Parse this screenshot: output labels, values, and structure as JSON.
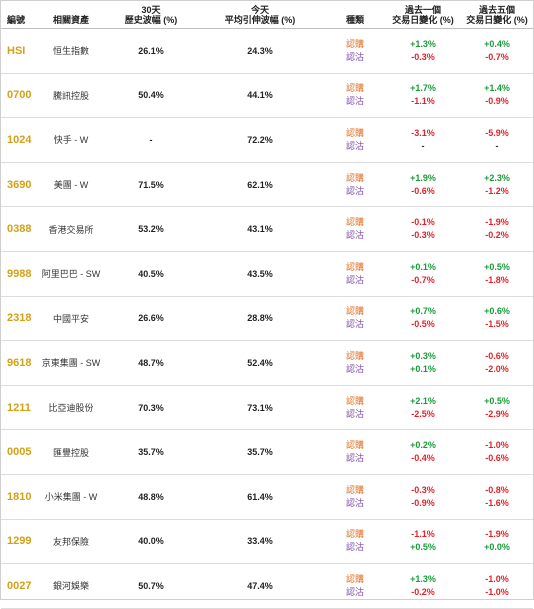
{
  "headers": {
    "code": "編號",
    "asset": "相關資產",
    "vol30_line1": "30天",
    "vol30_line2": "歷史波幅 (%)",
    "volimp_line1": "今天",
    "volimp_line2": "平均引伸波幅 (%)",
    "type": "種類",
    "d1_line1": "過去一個",
    "d1_line2": "交易日變化 (%)",
    "d5_line1": "過去五個",
    "d5_line2": "交易日變化 (%)"
  },
  "type_labels": {
    "bull": "認購",
    "bear": "認沽"
  },
  "colors": {
    "code": "#d4a017",
    "bull": "#e06b1f",
    "bear": "#7b4aa6",
    "positive": "#1a9b3a",
    "negative": "#e0232b"
  },
  "rows": [
    {
      "code": "HSI",
      "asset": "恒生指數",
      "vol30": "26.1%",
      "volimp": "24.3%",
      "d1": [
        "+1.3%",
        "-0.3%"
      ],
      "d5": [
        "+0.4%",
        "-0.7%"
      ]
    },
    {
      "code": "0700",
      "asset": "騰訊控股",
      "vol30": "50.4%",
      "volimp": "44.1%",
      "d1": [
        "+1.7%",
        "-1.1%"
      ],
      "d5": [
        "+1.4%",
        "-0.9%"
      ]
    },
    {
      "code": "1024",
      "asset": "快手 - W",
      "vol30": "-",
      "volimp": "72.2%",
      "d1": [
        "-3.1%",
        "-"
      ],
      "d5": [
        "-5.9%",
        "-"
      ]
    },
    {
      "code": "3690",
      "asset": "美團 - W",
      "vol30": "71.5%",
      "volimp": "62.1%",
      "d1": [
        "+1.9%",
        "-0.6%"
      ],
      "d5": [
        "+2.3%",
        "-1.2%"
      ]
    },
    {
      "code": "0388",
      "asset": "香港交易所",
      "vol30": "53.2%",
      "volimp": "43.1%",
      "d1": [
        "-0.1%",
        "-0.3%"
      ],
      "d5": [
        "-1.9%",
        "-0.2%"
      ]
    },
    {
      "code": "9988",
      "asset": "阿里巴巴 - SW",
      "vol30": "40.5%",
      "volimp": "43.5%",
      "d1": [
        "+0.1%",
        "-0.7%"
      ],
      "d5": [
        "+0.5%",
        "-1.8%"
      ]
    },
    {
      "code": "2318",
      "asset": "中國平安",
      "vol30": "26.6%",
      "volimp": "28.8%",
      "d1": [
        "+0.7%",
        "-0.5%"
      ],
      "d5": [
        "+0.6%",
        "-1.5%"
      ]
    },
    {
      "code": "9618",
      "asset": "京東集團 - SW",
      "vol30": "48.7%",
      "volimp": "52.4%",
      "d1": [
        "+0.3%",
        "+0.1%"
      ],
      "d5": [
        "-0.6%",
        "-2.0%"
      ]
    },
    {
      "code": "1211",
      "asset": "比亞迪股份",
      "vol30": "70.3%",
      "volimp": "73.1%",
      "d1": [
        "+2.1%",
        "-2.5%"
      ],
      "d5": [
        "+0.5%",
        "-2.9%"
      ]
    },
    {
      "code": "0005",
      "asset": "匯豐控股",
      "vol30": "35.7%",
      "volimp": "35.7%",
      "d1": [
        "+0.2%",
        "-0.4%"
      ],
      "d5": [
        "-1.0%",
        "-0.6%"
      ]
    },
    {
      "code": "1810",
      "asset": "小米集團 - W",
      "vol30": "48.8%",
      "volimp": "61.4%",
      "d1": [
        "-0.3%",
        "-0.9%"
      ],
      "d5": [
        "-0.8%",
        "-1.6%"
      ]
    },
    {
      "code": "1299",
      "asset": "友邦保險",
      "vol30": "40.0%",
      "volimp": "33.4%",
      "d1": [
        "-1.1%",
        "+0.5%"
      ],
      "d5": [
        "-1.9%",
        "+0.0%"
      ]
    },
    {
      "code": "0027",
      "asset": "銀河娛樂",
      "vol30": "50.7%",
      "volimp": "47.4%",
      "d1": [
        "+1.3%",
        "-0.2%"
      ],
      "d5": [
        "-1.0%",
        "-1.0%"
      ]
    }
  ]
}
